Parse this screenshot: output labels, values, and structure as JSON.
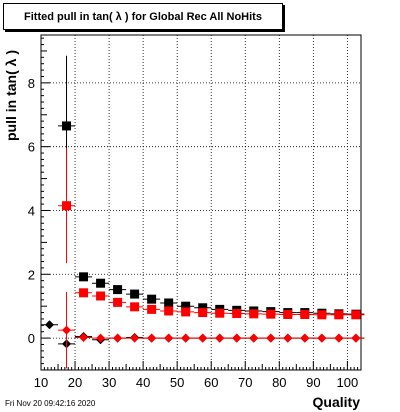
{
  "title": "Fitted pull in tan( λ ) for Global Rec All NoHits",
  "date": "Fri Nov 20 09:42:16 2020",
  "chart_data": {
    "type": "scatter",
    "title": "Fitted pull in tan( λ ) for Global Rec All NoHits",
    "xlabel": "Quality",
    "ylabel": "pull in tan( λ )",
    "xlim": [
      10,
      104
    ],
    "ylim": [
      -1.0,
      9.5
    ],
    "xticks": [
      10,
      20,
      30,
      40,
      50,
      60,
      70,
      80,
      90,
      100
    ],
    "yticks": [
      0,
      2,
      4,
      6,
      8
    ],
    "grid": true,
    "series": [
      {
        "marker": "square",
        "color": "#000000",
        "points": [
          {
            "x": 17.5,
            "y": 6.65,
            "err": 2.2
          },
          {
            "x": 22.5,
            "y": 1.92,
            "err": 0.0
          },
          {
            "x": 27.5,
            "y": 1.72,
            "err": 0.0
          },
          {
            "x": 32.5,
            "y": 1.52,
            "err": 0.0
          },
          {
            "x": 37.5,
            "y": 1.38,
            "err": 0.0
          },
          {
            "x": 42.5,
            "y": 1.22,
            "err": 0.0
          },
          {
            "x": 47.5,
            "y": 1.1,
            "err": 0.0
          },
          {
            "x": 52.5,
            "y": 1.0,
            "err": 0.0
          },
          {
            "x": 57.5,
            "y": 0.95,
            "err": 0.0
          },
          {
            "x": 62.5,
            "y": 0.9,
            "err": 0.0
          },
          {
            "x": 67.5,
            "y": 0.87,
            "err": 0.0
          },
          {
            "x": 72.5,
            "y": 0.85,
            "err": 0.0
          },
          {
            "x": 77.5,
            "y": 0.83,
            "err": 0.0
          },
          {
            "x": 82.5,
            "y": 0.8,
            "err": 0.0
          },
          {
            "x": 87.5,
            "y": 0.8,
            "err": 0.0
          },
          {
            "x": 92.5,
            "y": 0.78,
            "err": 0.0
          },
          {
            "x": 97.5,
            "y": 0.76,
            "err": 0.0
          },
          {
            "x": 102.5,
            "y": 0.75,
            "err": 0.0
          }
        ]
      },
      {
        "marker": "square",
        "color": "#ff0000",
        "points": [
          {
            "x": 17.5,
            "y": 4.15,
            "err": 1.8
          },
          {
            "x": 22.5,
            "y": 1.42,
            "err": 0.0
          },
          {
            "x": 27.5,
            "y": 1.32,
            "err": 0.0
          },
          {
            "x": 32.5,
            "y": 1.12,
            "err": 0.0
          },
          {
            "x": 37.5,
            "y": 0.98,
            "err": 0.0
          },
          {
            "x": 42.5,
            "y": 0.9,
            "err": 0.0
          },
          {
            "x": 47.5,
            "y": 0.85,
            "err": 0.0
          },
          {
            "x": 52.5,
            "y": 0.82,
            "err": 0.0
          },
          {
            "x": 57.5,
            "y": 0.8,
            "err": 0.0
          },
          {
            "x": 62.5,
            "y": 0.78,
            "err": 0.0
          },
          {
            "x": 67.5,
            "y": 0.77,
            "err": 0.0
          },
          {
            "x": 72.5,
            "y": 0.76,
            "err": 0.0
          },
          {
            "x": 77.5,
            "y": 0.75,
            "err": 0.0
          },
          {
            "x": 82.5,
            "y": 0.74,
            "err": 0.0
          },
          {
            "x": 87.5,
            "y": 0.74,
            "err": 0.0
          },
          {
            "x": 92.5,
            "y": 0.73,
            "err": 0.0
          },
          {
            "x": 97.5,
            "y": 0.73,
            "err": 0.0
          },
          {
            "x": 102.5,
            "y": 0.73,
            "err": 0.0
          }
        ]
      },
      {
        "marker": "diamond",
        "color": "#000000",
        "points": [
          {
            "x": 12.5,
            "y": 0.42,
            "err": 0.0
          },
          {
            "x": 17.5,
            "y": -0.18,
            "err": 0.0
          },
          {
            "x": 22.5,
            "y": 0.05,
            "err": 0.0
          },
          {
            "x": 27.5,
            "y": -0.05,
            "err": 0.0
          },
          {
            "x": 32.5,
            "y": 0.0,
            "err": 0.0
          },
          {
            "x": 37.5,
            "y": 0.02,
            "err": 0.0
          },
          {
            "x": 42.5,
            "y": 0.0,
            "err": 0.0
          },
          {
            "x": 47.5,
            "y": 0.0,
            "err": 0.0
          },
          {
            "x": 52.5,
            "y": 0.0,
            "err": 0.0
          },
          {
            "x": 57.5,
            "y": 0.0,
            "err": 0.0
          },
          {
            "x": 62.5,
            "y": 0.0,
            "err": 0.0
          },
          {
            "x": 67.5,
            "y": 0.0,
            "err": 0.0
          },
          {
            "x": 72.5,
            "y": 0.0,
            "err": 0.0
          },
          {
            "x": 77.5,
            "y": 0.0,
            "err": 0.0
          },
          {
            "x": 82.5,
            "y": 0.0,
            "err": 0.0
          },
          {
            "x": 87.5,
            "y": 0.0,
            "err": 0.0
          },
          {
            "x": 92.5,
            "y": 0.0,
            "err": 0.0
          },
          {
            "x": 97.5,
            "y": 0.0,
            "err": 0.0
          },
          {
            "x": 102.5,
            "y": 0.0,
            "err": 0.0
          }
        ]
      },
      {
        "marker": "diamond",
        "color": "#ff0000",
        "points": [
          {
            "x": 17.5,
            "y": 0.25,
            "err": 1.2
          },
          {
            "x": 22.5,
            "y": 0.02,
            "err": 0.0
          },
          {
            "x": 27.5,
            "y": 0.0,
            "err": 0.0
          },
          {
            "x": 32.5,
            "y": 0.0,
            "err": 0.0
          },
          {
            "x": 37.5,
            "y": 0.0,
            "err": 0.0
          },
          {
            "x": 42.5,
            "y": 0.0,
            "err": 0.0
          },
          {
            "x": 47.5,
            "y": 0.0,
            "err": 0.0
          },
          {
            "x": 52.5,
            "y": 0.0,
            "err": 0.0
          },
          {
            "x": 57.5,
            "y": 0.0,
            "err": 0.0
          },
          {
            "x": 62.5,
            "y": 0.0,
            "err": 0.0
          },
          {
            "x": 67.5,
            "y": 0.0,
            "err": 0.0
          },
          {
            "x": 72.5,
            "y": 0.0,
            "err": 0.0
          },
          {
            "x": 77.5,
            "y": 0.0,
            "err": 0.0
          },
          {
            "x": 82.5,
            "y": 0.0,
            "err": 0.0
          },
          {
            "x": 87.5,
            "y": 0.0,
            "err": 0.0
          },
          {
            "x": 92.5,
            "y": 0.0,
            "err": 0.0
          },
          {
            "x": 97.5,
            "y": 0.0,
            "err": 0.0
          },
          {
            "x": 102.5,
            "y": 0.0,
            "err": 0.0
          }
        ]
      }
    ]
  }
}
